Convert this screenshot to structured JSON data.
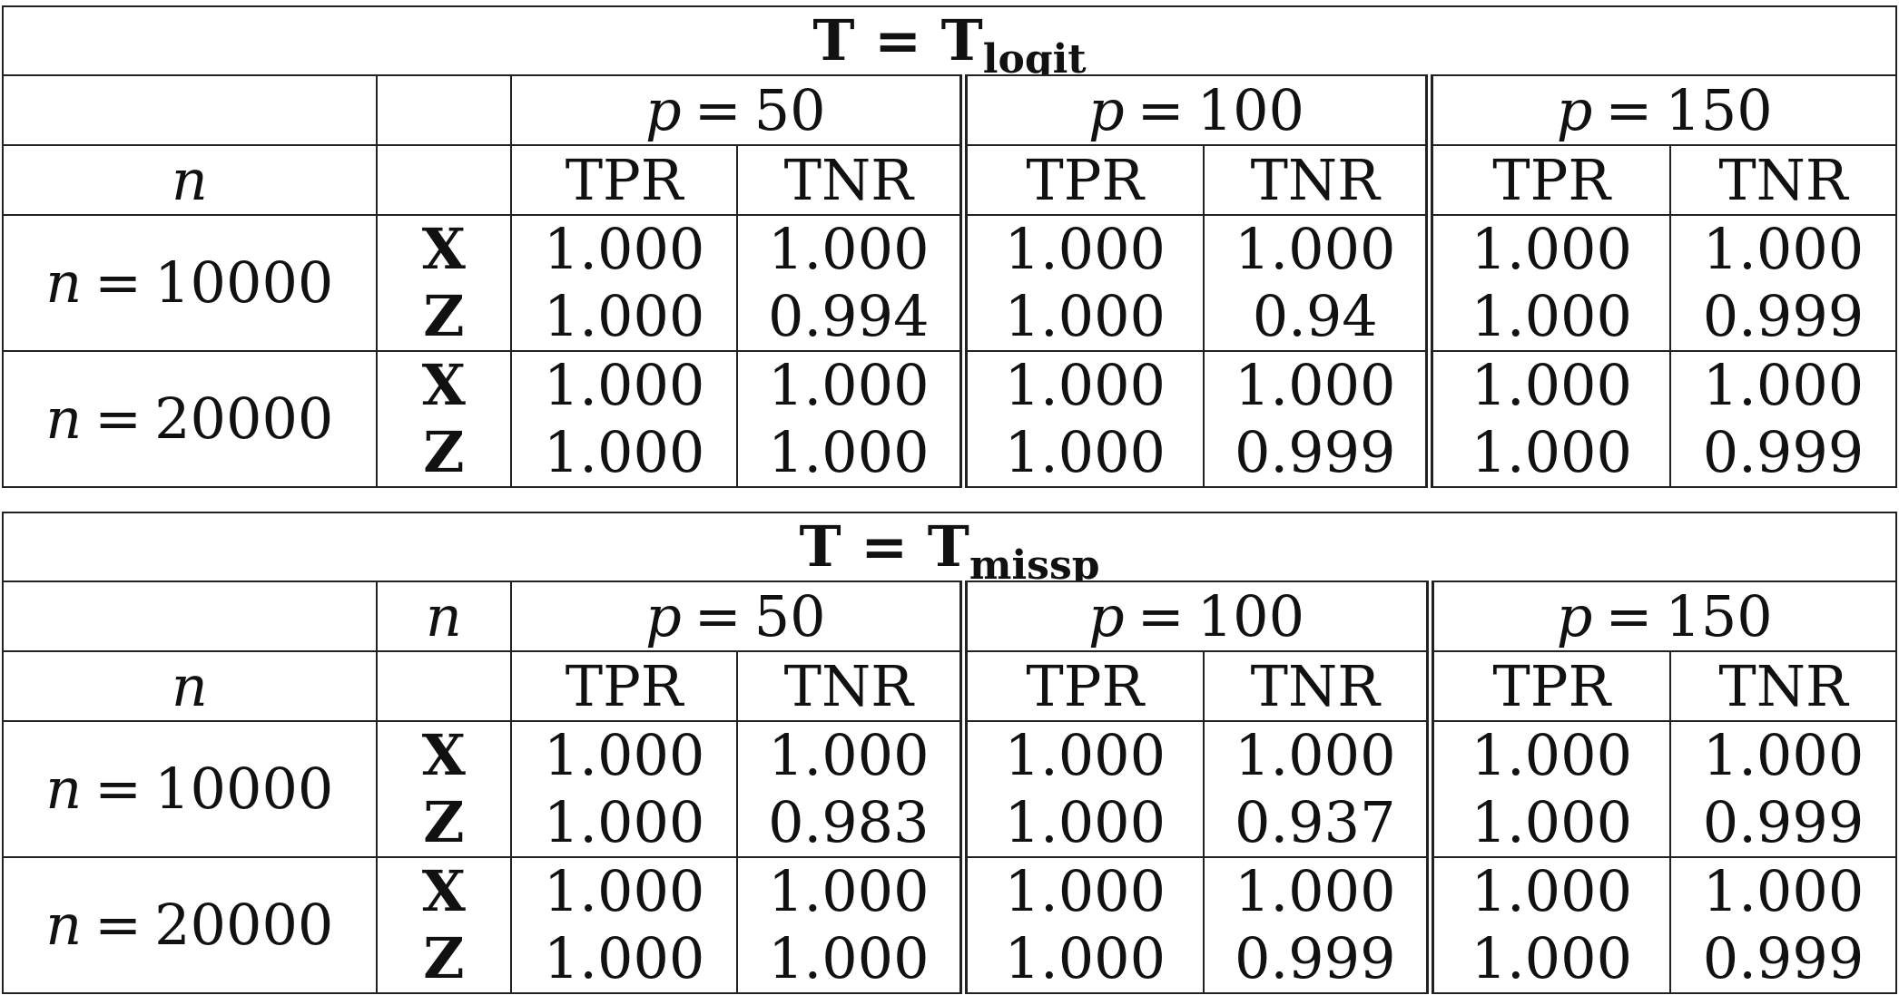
{
  "tables": [
    {
      "title_main": "T = T",
      "title_sub": "logit",
      "header_row1_left": "",
      "header_row1_var": "",
      "p_groups": [
        {
          "p": "50"
        },
        {
          "p": "100"
        },
        {
          "p": "150"
        }
      ],
      "header_row2_left": "n",
      "metrics": [
        "TPR",
        "TNR",
        "TPR",
        "TNR",
        "TPR",
        "TNR"
      ],
      "blocks": [
        {
          "n_value": "10000",
          "rows": [
            {
              "var": "X",
              "values": [
                "1.000",
                "1.000",
                "1.000",
                "1.000",
                "1.000",
                "1.000"
              ]
            },
            {
              "var": "Z",
              "values": [
                "1.000",
                "0.994",
                "1.000",
                "0.94",
                "1.000",
                "0.999"
              ]
            }
          ]
        },
        {
          "n_value": "20000",
          "rows": [
            {
              "var": "X",
              "values": [
                "1.000",
                "1.000",
                "1.000",
                "1.000",
                "1.000",
                "1.000"
              ]
            },
            {
              "var": "Z",
              "values": [
                "1.000",
                "1.000",
                "1.000",
                "0.999",
                "1.000",
                "0.999"
              ]
            }
          ]
        }
      ]
    },
    {
      "title_main": "T = T",
      "title_sub": "missp",
      "header_row1_left": "",
      "header_row1_var": "n",
      "p_groups": [
        {
          "p": "50"
        },
        {
          "p": "100"
        },
        {
          "p": "150"
        }
      ],
      "header_row2_left": "n",
      "metrics": [
        "TPR",
        "TNR",
        "TPR",
        "TNR",
        "TPR",
        "TNR"
      ],
      "blocks": [
        {
          "n_value": "10000",
          "rows": [
            {
              "var": "X",
              "values": [
                "1.000",
                "1.000",
                "1.000",
                "1.000",
                "1.000",
                "1.000"
              ]
            },
            {
              "var": "Z",
              "values": [
                "1.000",
                "0.983",
                "1.000",
                "0.937",
                "1.000",
                "0.999"
              ]
            }
          ]
        },
        {
          "n_value": "20000",
          "rows": [
            {
              "var": "X",
              "values": [
                "1.000",
                "1.000",
                "1.000",
                "1.000",
                "1.000",
                "1.000"
              ]
            },
            {
              "var": "Z",
              "values": [
                "1.000",
                "1.000",
                "1.000",
                "0.999",
                "1.000",
                "0.999"
              ]
            }
          ]
        }
      ]
    }
  ],
  "symbols": {
    "p": "p",
    "n": "n",
    "equals": "="
  }
}
